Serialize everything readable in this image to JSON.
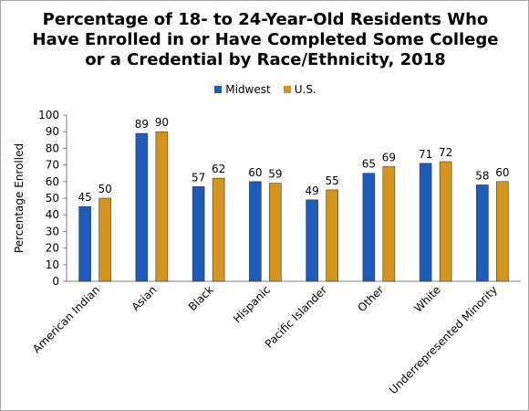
{
  "colors": {
    "midwest": "#1f5bb8",
    "us": "#d4951c",
    "axis": "#7f7f7f"
  },
  "chart_data": {
    "type": "bar",
    "title_lines": [
      "Percentage of 18- to 24-Year-Old Residents Who",
      "Have Enrolled in or Have Completed Some College",
      "or a Credential by Race/Ethnicity, 2018"
    ],
    "ylabel": "Percentage Enrolled",
    "xlabel": "",
    "ylim": [
      0,
      100
    ],
    "yticks": [
      0,
      10,
      20,
      30,
      40,
      50,
      60,
      70,
      80,
      90,
      100
    ],
    "grid": false,
    "legend_position": "top",
    "categories": [
      "American Indian",
      "Asian",
      "Black",
      "Hispanic",
      "Pacific Islander",
      "Other",
      "White",
      "Underrepresented Minority"
    ],
    "series": [
      {
        "name": "Midwest",
        "color": "#1f5bb8",
        "values": [
          45,
          89,
          57,
          60,
          49,
          65,
          71,
          58
        ]
      },
      {
        "name": "U.S.",
        "color": "#d4951c",
        "values": [
          50,
          90,
          62,
          59,
          55,
          69,
          72,
          60
        ]
      }
    ]
  }
}
